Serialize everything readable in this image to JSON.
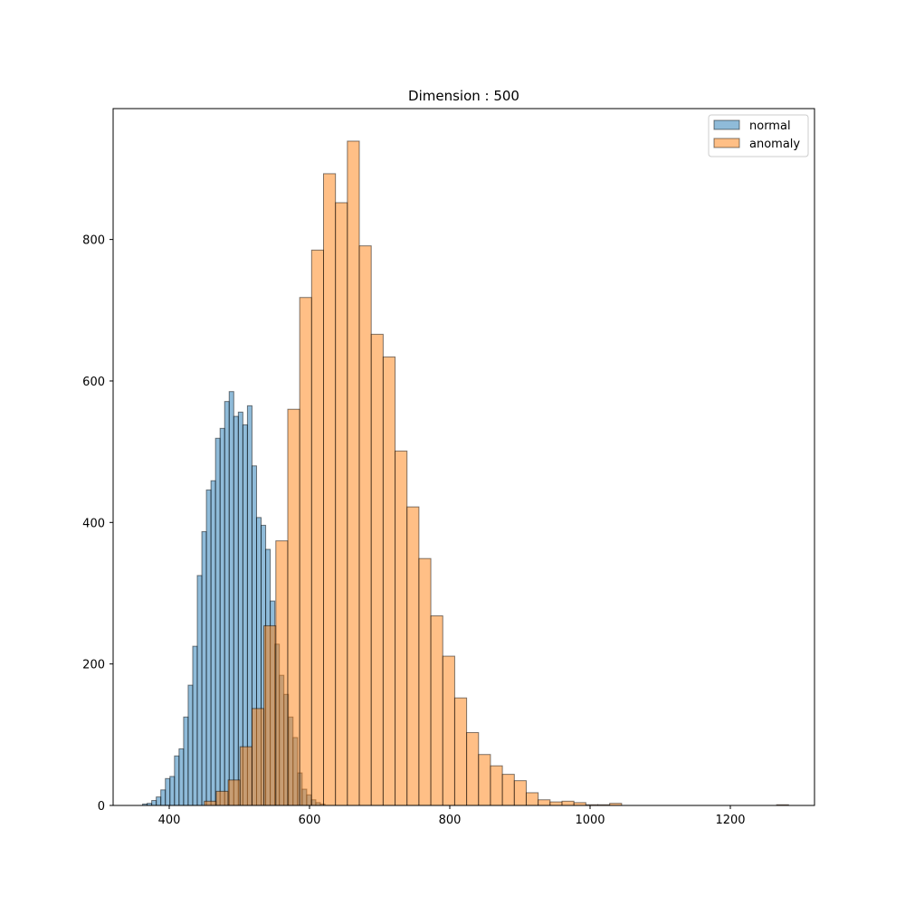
{
  "chart_data": {
    "type": "bar",
    "title": "Dimension : 500",
    "xlabel": "",
    "ylabel": "",
    "xlim": [
      320,
      1320
    ],
    "ylim": [
      0,
      985
    ],
    "xticks": [
      400,
      600,
      800,
      1000,
      1200
    ],
    "yticks": [
      0,
      200,
      400,
      600,
      800
    ],
    "grid": false,
    "legend_position": "top-right",
    "series": [
      {
        "name": "normal",
        "color": "#1f77b4",
        "alpha": 0.5,
        "bin_edges": [
          362,
          368.5,
          375,
          381.5,
          388,
          394.5,
          401,
          407.5,
          414,
          420.5,
          427,
          433.5,
          440,
          446.5,
          453,
          459.5,
          466,
          472.5,
          479,
          485.5,
          492,
          498.5,
          505,
          511.5,
          518,
          524.5,
          531,
          537.5,
          544,
          550.5,
          557,
          563.5,
          570,
          576.5,
          583,
          589.5,
          596,
          602.5,
          609,
          615.5,
          622
        ],
        "counts": [
          2,
          3,
          7,
          12,
          22,
          38,
          41,
          70,
          80,
          125,
          170,
          225,
          325,
          387,
          446,
          459,
          519,
          533,
          571,
          585,
          550,
          556,
          538,
          565,
          480,
          407,
          396,
          362,
          289,
          228,
          184,
          157,
          125,
          96,
          46,
          23,
          15,
          8,
          4,
          2
        ]
      },
      {
        "name": "anomaly",
        "color": "#ff7f0e",
        "alpha": 0.5,
        "bin_edges": [
          450,
          467,
          484,
          501,
          518,
          535,
          552,
          569,
          586,
          603,
          620,
          637,
          654,
          671,
          688,
          705,
          722,
          739,
          756,
          773,
          790,
          807,
          824,
          841,
          858,
          875,
          892,
          909,
          926,
          943,
          960,
          977,
          994,
          1011,
          1028,
          1045,
          1062,
          1079,
          1096,
          1113,
          1130,
          1147,
          1164,
          1181,
          1198,
          1215,
          1232,
          1249,
          1266,
          1283
        ],
        "counts": [
          6,
          20,
          36,
          83,
          137,
          254,
          374,
          560,
          718,
          785,
          893,
          852,
          939,
          791,
          666,
          634,
          501,
          422,
          349,
          268,
          211,
          152,
          103,
          72,
          56,
          44,
          35,
          18,
          8,
          5,
          6,
          4,
          1,
          1,
          3,
          0,
          0,
          0,
          0,
          0,
          0,
          0,
          0,
          0,
          0,
          0,
          0,
          0,
          1
        ]
      }
    ]
  }
}
